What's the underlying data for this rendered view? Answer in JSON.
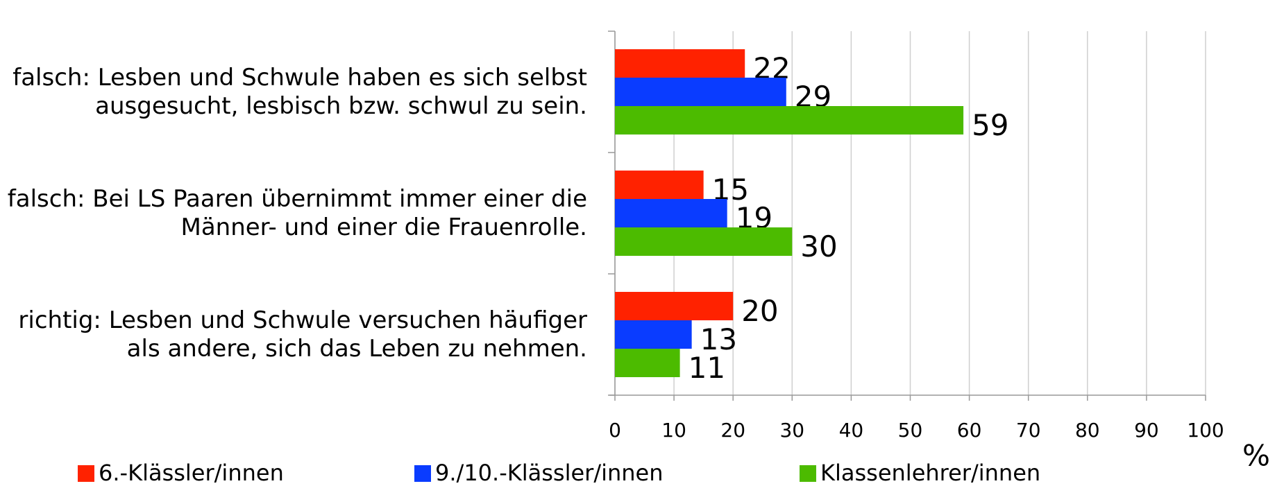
{
  "chart_data": {
    "type": "bar",
    "orientation": "horizontal",
    "categories": [
      "falsch: Lesben und Schwule haben es sich selbst ausgesucht, lesbisch bzw. schwul zu sein.",
      "falsch: Bei LS Paaren übernimmt immer einer die Männer- und einer die Frauenrolle.",
      "richtig: Lesben und Schwule versuchen häufiger als andere, sich das Leben zu nehmen."
    ],
    "series": [
      {
        "name": "6.-Klässler/innen",
        "color": "#ff2200",
        "values": [
          22,
          15,
          20
        ]
      },
      {
        "name": "9./10.-Klässler/innen",
        "color": "#0a3cff",
        "values": [
          29,
          19,
          13
        ]
      },
      {
        "name": "Klassenlehrer/innen",
        "color": "#4cbb00",
        "values": [
          59,
          30,
          11
        ]
      }
    ],
    "xlabel": "%",
    "xlim": [
      0,
      100
    ],
    "xticks": [
      0,
      10,
      20,
      30,
      40,
      50,
      60,
      70,
      80,
      90,
      100
    ],
    "grid": true,
    "legend": "bottom"
  }
}
